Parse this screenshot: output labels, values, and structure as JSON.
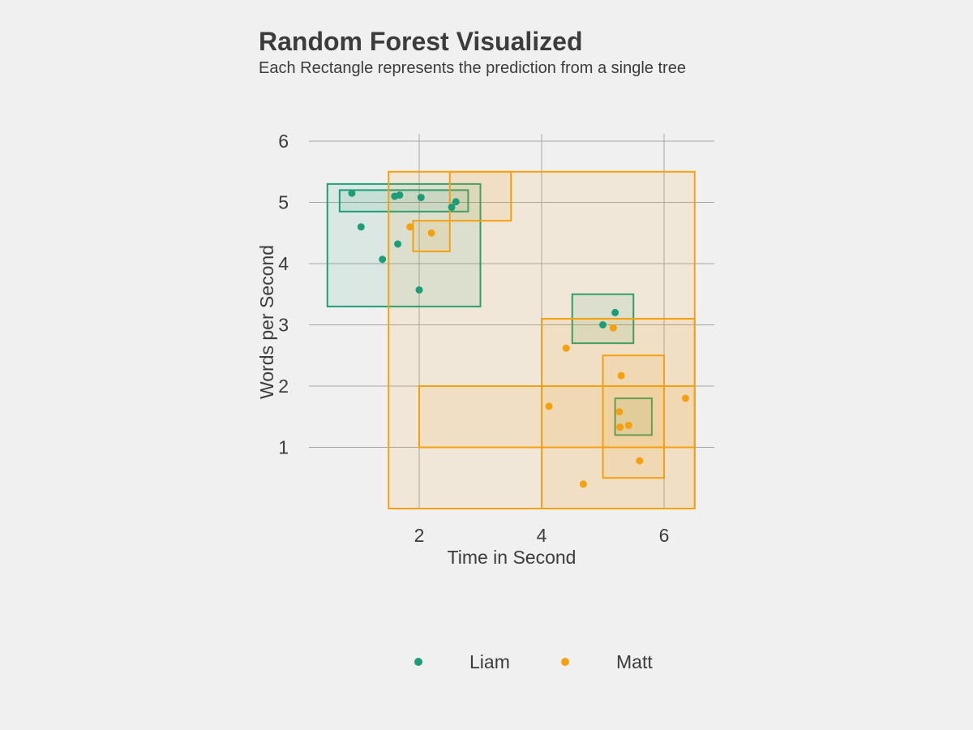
{
  "chart_data": {
    "type": "scatter",
    "title": "Random Forest Visualized",
    "subtitle": "Each Rectangle represents the prediction from a single tree",
    "xlabel": "Time in Second",
    "ylabel": "Words per Second",
    "xlim": [
      0.2,
      6.8
    ],
    "ylim": [
      0,
      6.2
    ],
    "x_ticks": [
      2,
      4,
      6
    ],
    "y_ticks": [
      1,
      2,
      3,
      4,
      5,
      6
    ],
    "grid": true,
    "legend_position": "bottom",
    "colors": {
      "Liam": "#1b9e77",
      "Matt": "#f5a00f"
    },
    "series": [
      {
        "name": "Liam",
        "color": "#1b9e77",
        "points": [
          {
            "x": 0.9,
            "y": 5.15
          },
          {
            "x": 1.05,
            "y": 4.6
          },
          {
            "x": 1.4,
            "y": 4.07
          },
          {
            "x": 1.6,
            "y": 5.1
          },
          {
            "x": 1.68,
            "y": 5.12
          },
          {
            "x": 1.65,
            "y": 4.32
          },
          {
            "x": 2.03,
            "y": 5.08
          },
          {
            "x": 2.0,
            "y": 3.57
          },
          {
            "x": 2.53,
            "y": 4.92
          },
          {
            "x": 2.6,
            "y": 5.01
          },
          {
            "x": 5.2,
            "y": 3.2
          },
          {
            "x": 5.0,
            "y": 3.0
          }
        ]
      },
      {
        "name": "Matt",
        "color": "#f5a00f",
        "points": [
          {
            "x": 1.85,
            "y": 4.6
          },
          {
            "x": 2.2,
            "y": 4.5
          },
          {
            "x": 5.17,
            "y": 2.95
          },
          {
            "x": 4.4,
            "y": 2.62
          },
          {
            "x": 5.3,
            "y": 2.17
          },
          {
            "x": 4.12,
            "y": 1.67
          },
          {
            "x": 5.27,
            "y": 1.58
          },
          {
            "x": 5.28,
            "y": 1.33
          },
          {
            "x": 5.42,
            "y": 1.36
          },
          {
            "x": 6.35,
            "y": 1.8
          },
          {
            "x": 5.6,
            "y": 0.78
          },
          {
            "x": 4.68,
            "y": 0.4
          }
        ]
      }
    ],
    "rectangles": [
      {
        "class": "Liam",
        "x0": 0.5,
        "x1": 3.0,
        "y0": 3.3,
        "y1": 5.3
      },
      {
        "class": "Liam",
        "x0": 0.7,
        "x1": 2.8,
        "y0": 4.85,
        "y1": 5.2
      },
      {
        "class": "Liam",
        "x0": 4.5,
        "x1": 5.5,
        "y0": 2.7,
        "y1": 3.5
      },
      {
        "class": "Liam",
        "x0": 5.2,
        "x1": 5.8,
        "y0": 1.2,
        "y1": 1.8
      },
      {
        "class": "Matt",
        "x0": 1.5,
        "x1": 6.5,
        "y0": 0.0,
        "y1": 5.5
      },
      {
        "class": "Matt",
        "x0": 2.5,
        "x1": 3.5,
        "y0": 4.7,
        "y1": 5.5
      },
      {
        "class": "Matt",
        "x0": 1.9,
        "x1": 2.5,
        "y0": 4.2,
        "y1": 4.7
      },
      {
        "class": "Matt",
        "x0": 4.0,
        "x1": 6.5,
        "y0": 0.0,
        "y1": 3.1
      },
      {
        "class": "Matt",
        "x0": 2.0,
        "x1": 6.5,
        "y0": 1.0,
        "y1": 2.0
      },
      {
        "class": "Matt",
        "x0": 5.0,
        "x1": 6.0,
        "y0": 0.5,
        "y1": 2.5
      }
    ]
  }
}
